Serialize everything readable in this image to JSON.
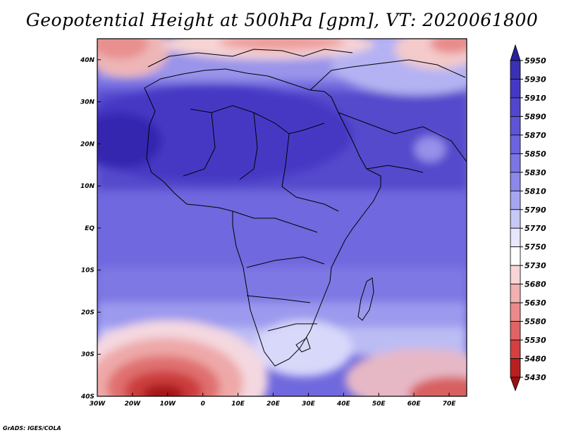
{
  "title": "Geopotential Height at 500hPa [gpm], VT: 2020061800",
  "credit": "GrADS: IGES/COLA",
  "map": {
    "lon_range": [
      -30,
      75
    ],
    "lat_range": [
      -40,
      45
    ],
    "lon_ticks": [
      "30W",
      "20W",
      "10W",
      "0",
      "10E",
      "20E",
      "30E",
      "40E",
      "50E",
      "60E",
      "70E"
    ],
    "lat_ticks": [
      "40S",
      "30S",
      "20S",
      "10S",
      "EQ",
      "10N",
      "20N",
      "30N",
      "40N"
    ]
  },
  "colorbar": {
    "levels": [
      "5950",
      "5930",
      "5910",
      "5890",
      "5870",
      "5850",
      "5830",
      "5810",
      "5790",
      "5770",
      "5750",
      "5730",
      "5680",
      "5630",
      "5580",
      "5530",
      "5480",
      "5430"
    ],
    "colors": [
      "#2a1f9e",
      "#3a30b4",
      "#4638c6",
      "#5246d0",
      "#5e54d8",
      "#6c64de",
      "#7c76e4",
      "#8c88ea",
      "#a6a6f0",
      "#c6c8f6",
      "#e8e8fc",
      "#ffffff",
      "#f8d6d6",
      "#f2b0b0",
      "#ea8a8a",
      "#e06464",
      "#d44040",
      "#b82020",
      "#9a1010"
    ]
  }
}
